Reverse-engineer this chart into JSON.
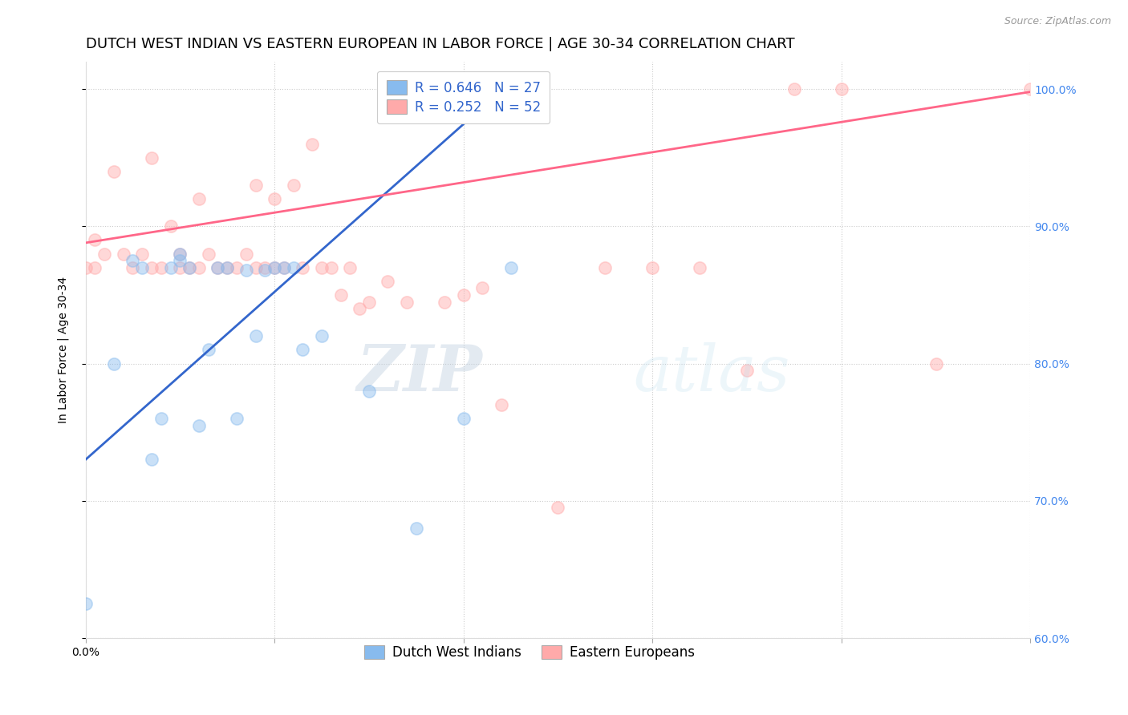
{
  "title": "DUTCH WEST INDIAN VS EASTERN EUROPEAN IN LABOR FORCE | AGE 30-34 CORRELATION CHART",
  "source": "Source: ZipAtlas.com",
  "ylabel": "In Labor Force | Age 30-34",
  "xlim": [
    0.0,
    0.1
  ],
  "ylim": [
    0.6,
    1.02
  ],
  "blue_color": "#88BBEE",
  "pink_color": "#FFAAAA",
  "blue_line_color": "#3366CC",
  "pink_line_color": "#FF6688",
  "blue_R": 0.646,
  "blue_N": 27,
  "pink_R": 0.252,
  "pink_N": 52,
  "legend_label_blue": "Dutch West Indians",
  "legend_label_pink": "Eastern Europeans",
  "watermark_zip": "ZIP",
  "watermark_atlas": "atlas",
  "blue_scatter_x": [
    0.0,
    0.003,
    0.005,
    0.006,
    0.007,
    0.008,
    0.009,
    0.01,
    0.01,
    0.011,
    0.012,
    0.013,
    0.014,
    0.015,
    0.016,
    0.017,
    0.018,
    0.019,
    0.02,
    0.021,
    0.022,
    0.023,
    0.025,
    0.03,
    0.035,
    0.04,
    0.045
  ],
  "blue_scatter_y": [
    0.625,
    0.8,
    0.875,
    0.87,
    0.73,
    0.76,
    0.87,
    0.88,
    0.875,
    0.87,
    0.755,
    0.81,
    0.87,
    0.87,
    0.76,
    0.868,
    0.82,
    0.868,
    0.87,
    0.87,
    0.87,
    0.81,
    0.82,
    0.78,
    0.68,
    0.76,
    0.87
  ],
  "pink_scatter_x": [
    0.0,
    0.001,
    0.001,
    0.002,
    0.003,
    0.004,
    0.005,
    0.006,
    0.007,
    0.007,
    0.008,
    0.009,
    0.01,
    0.01,
    0.011,
    0.012,
    0.012,
    0.013,
    0.014,
    0.015,
    0.016,
    0.017,
    0.018,
    0.018,
    0.019,
    0.02,
    0.02,
    0.021,
    0.022,
    0.023,
    0.024,
    0.025,
    0.026,
    0.027,
    0.028,
    0.029,
    0.03,
    0.032,
    0.034,
    0.038,
    0.04,
    0.042,
    0.044,
    0.05,
    0.055,
    0.06,
    0.065,
    0.07,
    0.075,
    0.08,
    0.09,
    0.1
  ],
  "pink_scatter_y": [
    0.87,
    0.87,
    0.89,
    0.88,
    0.94,
    0.88,
    0.87,
    0.88,
    0.95,
    0.87,
    0.87,
    0.9,
    0.87,
    0.88,
    0.87,
    0.87,
    0.92,
    0.88,
    0.87,
    0.87,
    0.87,
    0.88,
    0.93,
    0.87,
    0.87,
    0.87,
    0.92,
    0.87,
    0.93,
    0.87,
    0.96,
    0.87,
    0.87,
    0.85,
    0.87,
    0.84,
    0.845,
    0.86,
    0.845,
    0.845,
    0.85,
    0.855,
    0.77,
    0.695,
    0.87,
    0.87,
    0.87,
    0.795,
    1.0,
    1.0,
    0.8,
    1.0
  ],
  "blue_trend_x": [
    0.0,
    0.045
  ],
  "blue_trend_y": [
    0.73,
    1.005
  ],
  "pink_trend_x": [
    0.0,
    0.1
  ],
  "pink_trend_y": [
    0.888,
    0.998
  ],
  "title_fontsize": 13,
  "axis_label_fontsize": 10,
  "tick_fontsize": 10,
  "legend_fontsize": 12,
  "marker_size": 11,
  "marker_alpha": 0.45,
  "background_color": "#ffffff",
  "grid_color": "#cccccc",
  "right_tick_color": "#4488EE",
  "legend_text_color": "#3366CC"
}
